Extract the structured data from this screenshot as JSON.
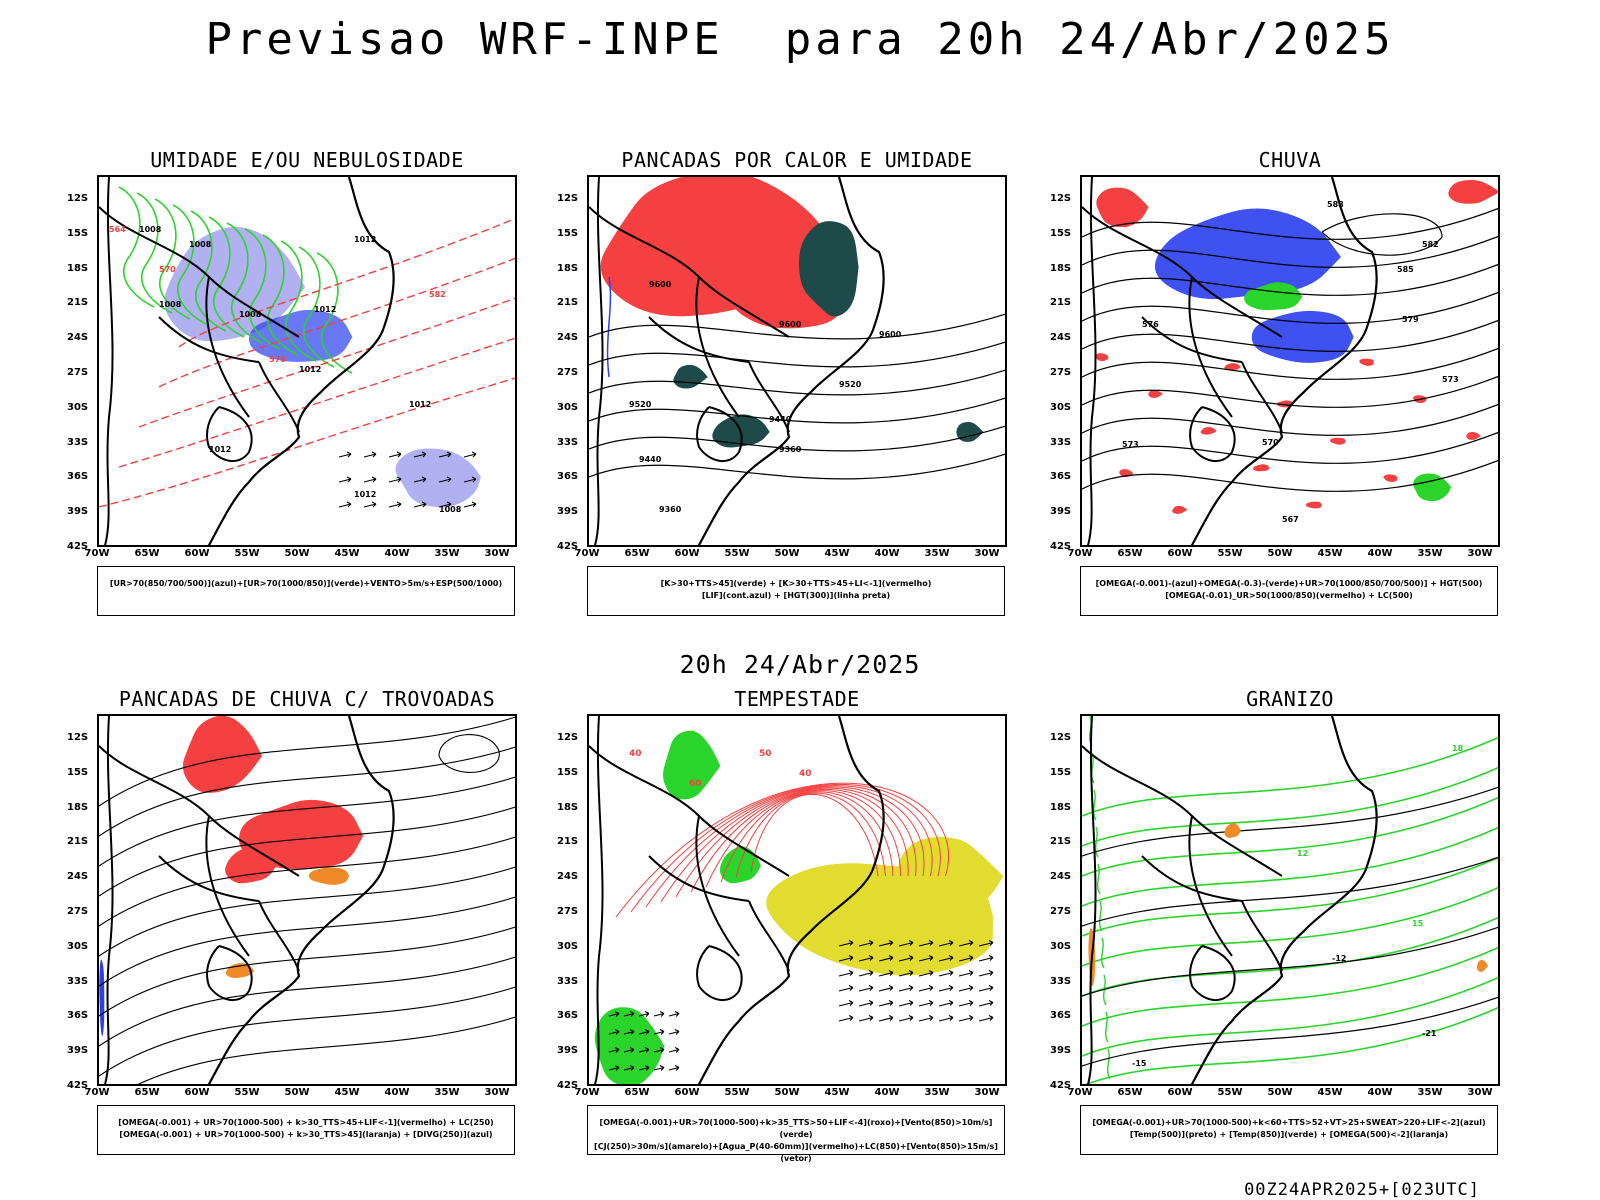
{
  "header": {
    "title": "Previsao WRF-INPE  para 20h 24/Abr/2025",
    "mid_date": "20h 24/Abr/2025",
    "run_stamp": "00Z24APR2025+[023UTC]"
  },
  "axes": {
    "lat_labels": [
      "12S",
      "15S",
      "18S",
      "21S",
      "24S",
      "27S",
      "30S",
      "33S",
      "36S",
      "39S",
      "42S"
    ],
    "lon_labels": [
      "70W",
      "65W",
      "60W",
      "55W",
      "50W",
      "45W",
      "40W",
      "35W",
      "30W"
    ]
  },
  "panels": [
    {
      "id": "umidade",
      "title": "UMIDADE E/OU NEBULOSIDADE",
      "legend": [
        "[UR>70(850/700/500)](azul)+[UR>70(1000/850)](verde)+VENTO>5m/s+ESP(500/1000)"
      ],
      "contour_labels": [
        "1008",
        "1012",
        "1008",
        "1012",
        "1008",
        "1008",
        "1012",
        "1012",
        "1012",
        "1012",
        "1008",
        "564",
        "570",
        "576",
        "582"
      ]
    },
    {
      "id": "pancadas-calor",
      "title": "PANCADAS POR CALOR E UMIDADE",
      "legend": [
        "[K>30+TTS>45](verde) + [K>30+TTS>45+LI<-1](vermelho)",
        "[LIF](cont.azul) + [HGT(300)](linha preta)"
      ],
      "contour_labels": [
        "9600",
        "9600",
        "9600",
        "9520",
        "9520",
        "9440",
        "9440",
        "9360",
        "9360"
      ]
    },
    {
      "id": "chuva",
      "title": "CHUVA",
      "legend": [
        "[OMEGA(-0.001)-(azul)+OMEGA(-0.3)-(verde)+UR>70(1000/850/700/500)] + HGT(500)",
        "[OMEGA(-0.01)_UR>50(1000/850)(vermelho) + LC(500)"
      ],
      "contour_labels": [
        "588",
        "585",
        "582",
        "579",
        "576",
        "573",
        "573",
        "570",
        "567"
      ]
    },
    {
      "id": "trovoadas",
      "title": "PANCADAS DE CHUVA C/ TROVOADAS",
      "legend": [
        "[OMEGA(-0.001) + UR>70(1000-500) + k>30_TTS>45+LIF<-1](vermelho) + LC(250)",
        "[OMEGA(-0.001) + UR>70(1000-500) + k>30_TTS>45](laranja) + [DIVG(250)](azul)"
      ],
      "contour_labels": []
    },
    {
      "id": "tempestade",
      "title": "TEMPESTADE",
      "legend": [
        "[OMEGA(-0.001)+UR>70(1000-500)+k>35_TTS>50+LIF<-4](roxo)+[Vento(850)>10m/s](verde)",
        "[CJ(250)>30m/s](amarelo)+[Agua_P(40-60mm)](vermelho)+LC(850)+[Vento(850)>15m/s](vetor)"
      ],
      "contour_labels": [
        "40",
        "60",
        "50",
        "40"
      ]
    },
    {
      "id": "granizo",
      "title": "GRANIZO",
      "legend": [
        "[OMEGA(-0.001)+UR>70(1000-500)+k<60+TTS>52+VT>25+SWEAT>220+LIF<-2](azul)",
        "[Temp(500)](preto) + [Temp(850)](verde) + [OMEGA(500)<-2](laranja)"
      ],
      "contour_labels": [
        "-12",
        "-15",
        "-21",
        "12",
        "15",
        "18"
      ]
    }
  ],
  "colors": {
    "red": "#f44040",
    "blue": "#2a3fef",
    "lightblue": "#a8a8f0",
    "green": "#2bd42b",
    "darkteal": "#1e4a4a",
    "yellow": "#e2dc30",
    "orange": "#f08a28"
  }
}
